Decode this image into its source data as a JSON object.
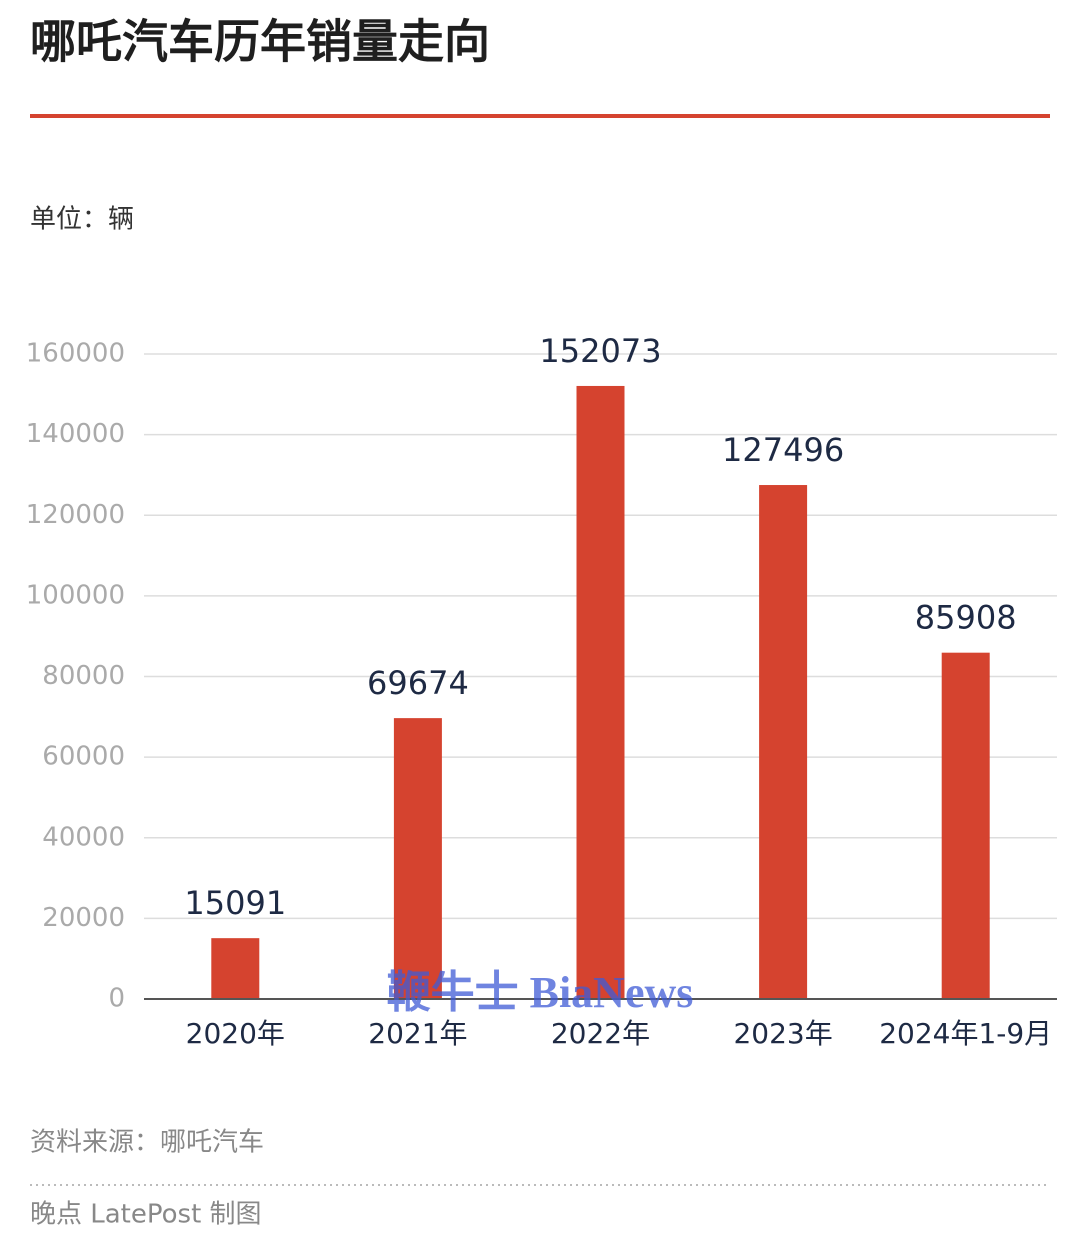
{
  "header": {
    "title": "哪吒汽车历年销量走向"
  },
  "chart_data": {
    "type": "bar",
    "unit_label": "单位：辆",
    "categories": [
      "2020年",
      "2021年",
      "2022年",
      "2023年",
      "2024年1-9月"
    ],
    "values": [
      15091,
      69674,
      152073,
      127496,
      85908
    ],
    "color": "#d5432f",
    "ylim": [
      0,
      160000
    ],
    "yticks": [
      0,
      20000,
      40000,
      60000,
      80000,
      100000,
      120000,
      140000,
      160000
    ],
    "grid": true
  },
  "footer": {
    "source": "资料来源：哪吒汽车",
    "credit": "晚点 LatePost 制图"
  },
  "watermark": "鞭牛士 BiaNews"
}
